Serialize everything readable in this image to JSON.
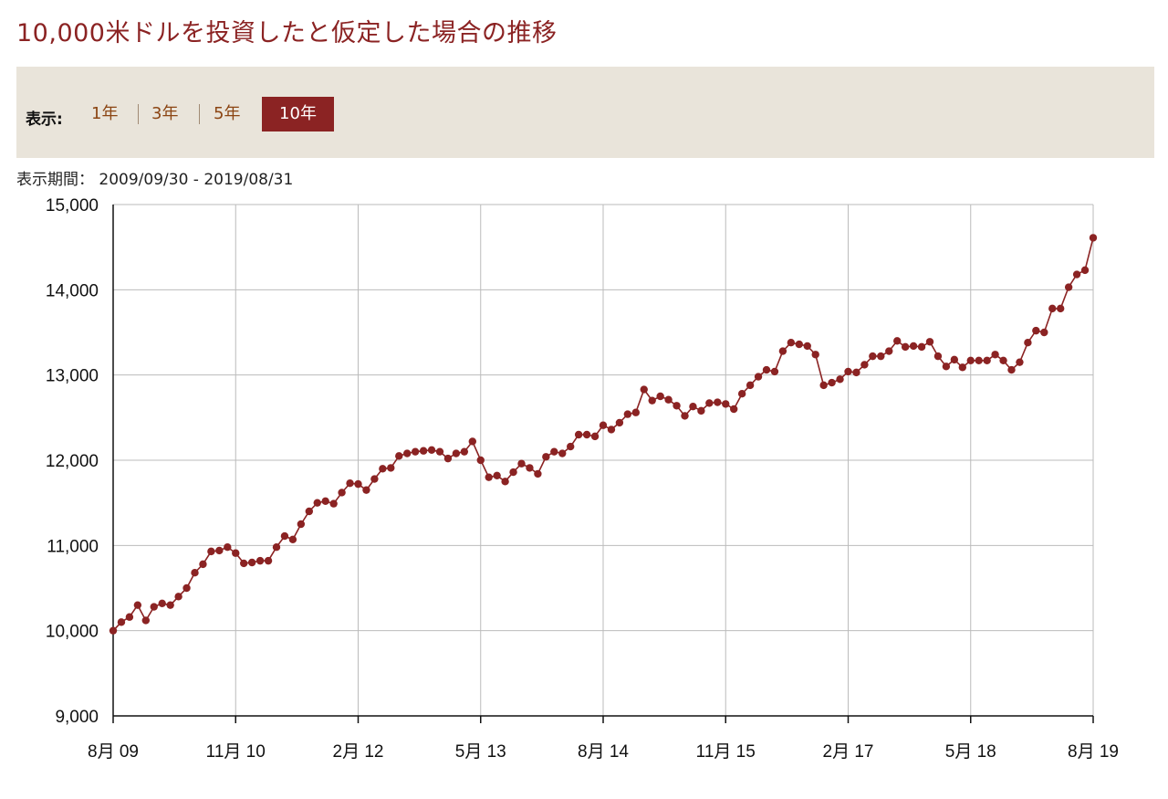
{
  "title": "10,000米ドルを投資したと仮定した場合の推移",
  "controls": {
    "label": "表示:",
    "periods": [
      "1年",
      "3年",
      "5年",
      "10年"
    ],
    "active_period": "10年"
  },
  "range": {
    "label": "表示期間：",
    "value": "2009/09/30 - 2019/08/31"
  },
  "colors": {
    "line": "#8b2323",
    "grid": "#bbbbbb",
    "accent": "#8b2323",
    "panel": "#e9e4da"
  },
  "chart_data": {
    "type": "line",
    "title": "",
    "xlabel": "",
    "ylabel": "",
    "ylim": [
      9000,
      15000
    ],
    "yticks": [
      9000,
      10000,
      11000,
      12000,
      13000,
      14000,
      15000
    ],
    "ytick_labels": [
      "9,000",
      "10,000",
      "11,000",
      "12,000",
      "13,000",
      "14,000",
      "15,000"
    ],
    "xtick_labels": [
      "8月 09",
      "11月 10",
      "2月 12",
      "5月 13",
      "8月 14",
      "11月 15",
      "2月 17",
      "5月 18",
      "8月 19"
    ],
    "xtick_dates": [
      "2009-08",
      "2010-11",
      "2012-02",
      "2013-05",
      "2014-08",
      "2015-11",
      "2017-02",
      "2018-05",
      "2019-08"
    ],
    "grid": true,
    "series": [
      {
        "x": [
          "2009-08",
          "2009-09",
          "2009-10",
          "2009-11",
          "2009-12",
          "2010-01",
          "2010-02",
          "2010-03",
          "2010-04",
          "2010-05",
          "2010-06",
          "2010-07",
          "2010-08",
          "2010-09",
          "2010-10",
          "2010-11",
          "2010-12",
          "2011-01",
          "2011-02",
          "2011-03",
          "2011-04",
          "2011-05",
          "2011-06",
          "2011-07",
          "2011-08",
          "2011-09",
          "2011-10",
          "2011-11",
          "2011-12",
          "2012-01",
          "2012-02",
          "2012-03",
          "2012-04",
          "2012-05",
          "2012-06",
          "2012-07",
          "2012-08",
          "2012-09",
          "2012-10",
          "2012-11",
          "2012-12",
          "2013-01",
          "2013-02",
          "2013-03",
          "2013-04",
          "2013-05",
          "2013-06",
          "2013-07",
          "2013-08",
          "2013-09",
          "2013-10",
          "2013-11",
          "2013-12",
          "2014-01",
          "2014-02",
          "2014-03",
          "2014-04",
          "2014-05",
          "2014-06",
          "2014-07",
          "2014-08",
          "2014-09",
          "2014-10",
          "2014-11",
          "2014-12",
          "2015-01",
          "2015-02",
          "2015-03",
          "2015-04",
          "2015-05",
          "2015-06",
          "2015-07",
          "2015-08",
          "2015-09",
          "2015-10",
          "2015-11",
          "2015-12",
          "2016-01",
          "2016-02",
          "2016-03",
          "2016-04",
          "2016-05",
          "2016-06",
          "2016-07",
          "2016-08",
          "2016-09",
          "2016-10",
          "2016-11",
          "2016-12",
          "2017-01",
          "2017-02",
          "2017-03",
          "2017-04",
          "2017-05",
          "2017-06",
          "2017-07",
          "2017-08",
          "2017-09",
          "2017-10",
          "2017-11",
          "2017-12",
          "2018-01",
          "2018-02",
          "2018-03",
          "2018-04",
          "2018-05",
          "2018-06",
          "2018-07",
          "2018-08",
          "2018-09",
          "2018-10",
          "2018-11",
          "2018-12",
          "2019-01",
          "2019-02",
          "2019-03",
          "2019-04",
          "2019-05",
          "2019-06",
          "2019-07",
          "2019-08"
        ],
        "values": [
          10000,
          10100,
          10160,
          10300,
          10120,
          10280,
          10320,
          10300,
          10400,
          10500,
          10680,
          10780,
          10930,
          10940,
          10980,
          10910,
          10790,
          10800,
          10820,
          10820,
          10980,
          11110,
          11070,
          11250,
          11400,
          11500,
          11520,
          11490,
          11620,
          11730,
          11720,
          11650,
          11780,
          11900,
          11910,
          12050,
          12080,
          12100,
          12110,
          12120,
          12100,
          12020,
          12080,
          12100,
          12220,
          12000,
          11800,
          11820,
          11750,
          11860,
          11960,
          11910,
          11840,
          12040,
          12100,
          12080,
          12160,
          12300,
          12300,
          12280,
          12410,
          12360,
          12440,
          12540,
          12560,
          12830,
          12700,
          12750,
          12710,
          12640,
          12520,
          12630,
          12580,
          12670,
          12680,
          12660,
          12600,
          12780,
          12880,
          12980,
          13060,
          13040,
          13280,
          13380,
          13360,
          13340,
          13240,
          12880,
          12910,
          12950,
          13040,
          13030,
          13120,
          13220,
          13220,
          13280,
          13400,
          13330,
          13340,
          13330,
          13390,
          13220,
          13100,
          13180,
          13090,
          13170,
          13170,
          13170,
          13240,
          13170,
          13060,
          13150,
          13380,
          13520,
          13500,
          13780,
          13780,
          14030,
          14180,
          14230,
          14610
        ]
      }
    ]
  }
}
